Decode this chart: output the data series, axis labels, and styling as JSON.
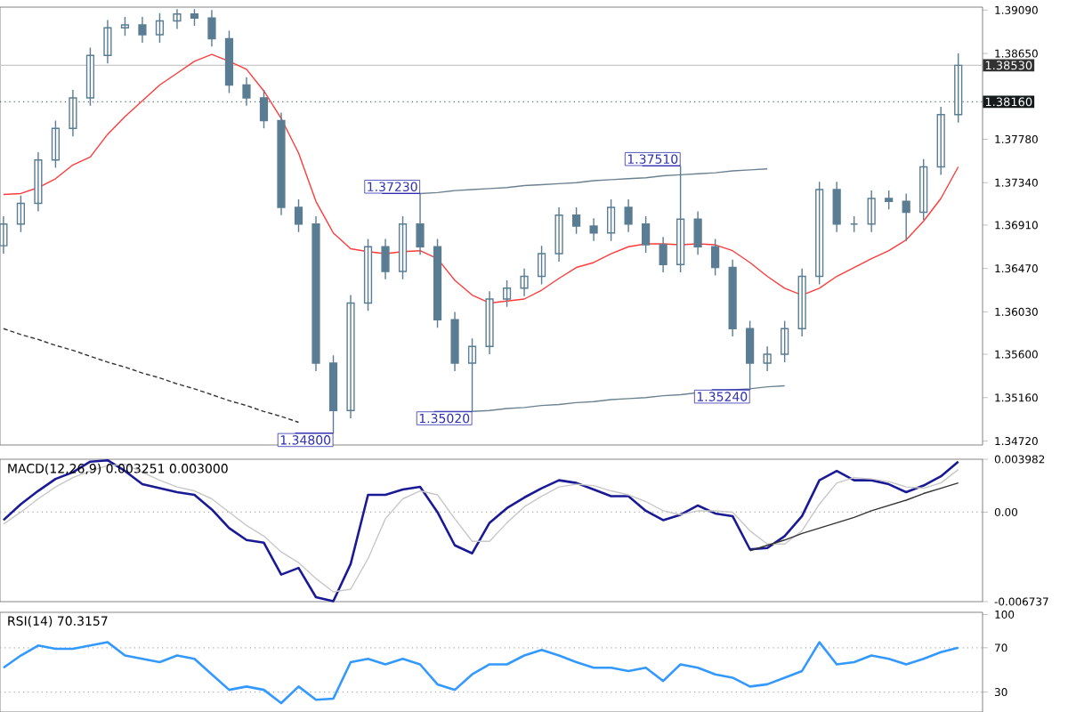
{
  "chart_data": [
    {
      "type": "candlestick",
      "color": "#5a7d93",
      "tick_labels": "y",
      "categories": [
        null,
        null,
        null,
        null,
        null,
        null,
        null,
        null,
        null,
        null,
        null,
        null,
        null,
        null,
        null,
        null,
        null,
        null,
        null,
        null,
        null,
        null,
        null,
        null,
        null,
        null,
        null,
        null,
        null,
        null,
        null,
        null,
        null,
        null,
        null,
        null,
        null,
        null,
        null,
        null,
        null,
        null,
        null,
        null,
        null,
        null,
        null,
        null,
        null,
        null,
        null,
        null,
        null,
        null,
        null,
        null
      ],
      "ohlc": [
        [
          1.367,
          1.37,
          1.3662,
          1.3692
        ],
        [
          1.3692,
          1.3721,
          1.3684,
          1.3713
        ],
        [
          1.3713,
          1.3765,
          1.3705,
          1.3757
        ],
        [
          1.3757,
          1.3797,
          1.3749,
          1.3789
        ],
        [
          1.3789,
          1.3828,
          1.3781,
          1.382
        ],
        [
          1.382,
          1.3871,
          1.3812,
          1.3863
        ],
        [
          1.3863,
          1.3899,
          1.3855,
          1.3891
        ],
        [
          1.3891,
          1.3902,
          1.3883,
          1.3894
        ],
        [
          1.3894,
          1.3902,
          1.3876,
          1.3884
        ],
        [
          1.3884,
          1.3906,
          1.3876,
          1.3898
        ],
        [
          1.3898,
          1.391,
          1.389,
          1.3905
        ],
        [
          1.3905,
          1.391,
          1.3893,
          1.3901
        ],
        [
          1.3901,
          1.3909,
          1.3872,
          1.388
        ],
        [
          1.388,
          1.3888,
          1.3825,
          1.3833
        ],
        [
          1.3833,
          1.3841,
          1.3812,
          1.382
        ],
        [
          1.382,
          1.3828,
          1.3789,
          1.3797
        ],
        [
          1.3797,
          1.3805,
          1.3701,
          1.3709
        ],
        [
          1.3709,
          1.3717,
          1.3684,
          1.3692
        ],
        [
          1.3692,
          1.37,
          1.3543,
          1.3551
        ],
        [
          1.3551,
          1.3559,
          1.348,
          1.3503
        ],
        [
          1.3503,
          1.362,
          1.3495,
          1.3612
        ],
        [
          1.3612,
          1.3677,
          1.3604,
          1.3669
        ],
        [
          1.3669,
          1.3677,
          1.3636,
          1.3644
        ],
        [
          1.3644,
          1.37,
          1.3636,
          1.3692
        ],
        [
          1.3692,
          1.3723,
          1.3661,
          1.3669
        ],
        [
          1.3669,
          1.3677,
          1.3587,
          1.3595
        ],
        [
          1.3595,
          1.3603,
          1.3543,
          1.3551
        ],
        [
          1.3551,
          1.3576,
          1.3502,
          1.3568
        ],
        [
          1.3568,
          1.3624,
          1.356,
          1.3616
        ],
        [
          1.3616,
          1.3635,
          1.3608,
          1.3627
        ],
        [
          1.3627,
          1.3647,
          1.3619,
          1.3639
        ],
        [
          1.3639,
          1.367,
          1.3631,
          1.3662
        ],
        [
          1.3662,
          1.3709,
          1.3654,
          1.3701
        ],
        [
          1.3701,
          1.3709,
          1.3682,
          1.369
        ],
        [
          1.369,
          1.3698,
          1.3675,
          1.3683
        ],
        [
          1.3683,
          1.3717,
          1.3675,
          1.3709
        ],
        [
          1.3709,
          1.3717,
          1.3684,
          1.3692
        ],
        [
          1.3692,
          1.37,
          1.3663,
          1.3671
        ],
        [
          1.3671,
          1.3679,
          1.3643,
          1.3651
        ],
        [
          1.3651,
          1.3751,
          1.3643,
          1.3697
        ],
        [
          1.3697,
          1.3705,
          1.3661,
          1.3669
        ],
        [
          1.3669,
          1.3677,
          1.364,
          1.3648
        ],
        [
          1.3648,
          1.3656,
          1.3578,
          1.3586
        ],
        [
          1.3586,
          1.3594,
          1.3524,
          1.3551
        ],
        [
          1.3551,
          1.3568,
          1.3543,
          1.356
        ],
        [
          1.356,
          1.3594,
          1.3552,
          1.3586
        ],
        [
          1.3586,
          1.3647,
          1.3578,
          1.3639
        ],
        [
          1.3639,
          1.3735,
          1.3631,
          1.3727
        ],
        [
          1.3727,
          1.3735,
          1.3684,
          1.3692
        ],
        [
          1.3692,
          1.37,
          1.3684,
          1.3692
        ],
        [
          1.3692,
          1.3726,
          1.3684,
          1.3718
        ],
        [
          1.3718,
          1.3726,
          1.3707,
          1.3715
        ],
        [
          1.3715,
          1.3723,
          1.3675,
          1.3704
        ],
        [
          1.3704,
          1.3758,
          1.3696,
          1.375
        ],
        [
          1.375,
          1.3811,
          1.3742,
          1.3803
        ],
        [
          1.3803,
          1.3865,
          1.3795,
          1.3853
        ]
      ],
      "series": [
        {
          "type": "line",
          "color": "#ff3b3b",
          "values": [
            1.3722,
            1.3723,
            1.3729,
            1.3738,
            1.3752,
            1.376,
            1.3783,
            1.3801,
            1.3817,
            1.3833,
            1.3845,
            1.3857,
            1.3864,
            1.3857,
            1.3849,
            1.3827,
            1.3799,
            1.3764,
            1.3715,
            1.3683,
            1.3667,
            1.3664,
            1.3662,
            1.3664,
            1.3665,
            1.3657,
            1.3635,
            1.362,
            1.3612,
            1.3614,
            1.3616,
            1.3625,
            1.3637,
            1.3648,
            1.3653,
            1.3662,
            1.3669,
            1.3672,
            1.3672,
            1.3671,
            1.3672,
            1.3671,
            1.3665,
            1.3653,
            1.3639,
            1.3627,
            1.362,
            1.3627,
            1.3639,
            1.3648,
            1.3657,
            1.3665,
            1.3676,
            1.3695,
            1.3718,
            1.375
          ]
        },
        {
          "type": "line",
          "color": "#6d8291",
          "values": [
            null,
            null,
            null,
            null,
            null,
            null,
            null,
            null,
            null,
            null,
            null,
            null,
            null,
            null,
            null,
            null,
            null,
            null,
            null,
            null,
            null,
            null,
            null,
            null,
            1.3723,
            1.3724,
            1.3726,
            1.3727,
            1.3728,
            1.3729,
            1.3731,
            1.3732,
            1.3733,
            1.3734,
            1.3736,
            1.3737,
            1.3738,
            1.3739,
            1.3741,
            1.3742,
            1.3743,
            1.3744,
            1.3746,
            1.3747,
            1.3748,
            null,
            null,
            null,
            null,
            null,
            null,
            null,
            null,
            null,
            null,
            null
          ]
        },
        {
          "type": "line",
          "color": "#6d8291",
          "values": [
            null,
            null,
            null,
            null,
            null,
            null,
            null,
            null,
            null,
            null,
            null,
            null,
            null,
            null,
            null,
            null,
            null,
            null,
            null,
            null,
            null,
            null,
            null,
            null,
            null,
            null,
            null,
            1.3502,
            1.3503,
            1.3505,
            1.3506,
            1.3508,
            1.3509,
            1.3511,
            1.3512,
            1.3514,
            1.3515,
            1.3516,
            1.3518,
            1.3519,
            1.3521,
            1.3522,
            1.3524,
            1.3525,
            1.3527,
            1.3528,
            null,
            null,
            null,
            null,
            null,
            null,
            null,
            null,
            null,
            null
          ]
        },
        {
          "type": "line",
          "color": "#333333",
          "line_style": "dashed",
          "values": [
            1.3586,
            1.358,
            1.3575,
            1.3569,
            1.3564,
            1.3558,
            1.3552,
            1.3547,
            1.3541,
            1.3536,
            1.353,
            1.3525,
            1.3519,
            1.3513,
            1.3508,
            1.3502,
            1.3497,
            1.3491,
            null,
            null,
            null,
            null,
            null,
            null,
            null,
            null,
            null,
            null,
            null,
            null,
            null,
            null,
            null,
            null,
            null,
            null,
            null,
            null,
            null,
            null,
            null,
            null,
            null,
            null,
            null,
            null,
            null,
            null,
            null,
            null,
            null,
            null,
            null,
            null,
            null,
            null
          ]
        }
      ],
      "ylim": [
        1.3468,
        1.3912
      ],
      "yticks": [
        {
          "value": 1.3472,
          "label": "1.34720"
        },
        {
          "value": 1.3516,
          "label": "1.35160"
        },
        {
          "value": 1.356,
          "label": "1.35600"
        },
        {
          "value": 1.3603,
          "label": "1.36030"
        },
        {
          "value": 1.3647,
          "label": "1.36470"
        },
        {
          "value": 1.3691,
          "label": "1.36910"
        },
        {
          "value": 1.3734,
          "label": "1.37340"
        },
        {
          "value": 1.3778,
          "label": "1.37780"
        },
        {
          "value": 1.3865,
          "label": "1.38650"
        },
        {
          "value": 1.3909,
          "label": "1.39090"
        }
      ],
      "ref_lines": [
        {
          "axis": "y",
          "value": 1.3853,
          "label": "1.38530",
          "color": "#c8c8c8",
          "line_style": "solid"
        },
        {
          "axis": "y",
          "value": 1.3816,
          "label": "1.38160",
          "color": "#556b6b",
          "line_style": "dotted"
        }
      ],
      "annotations": [
        "1.37230",
        "1.34800",
        "1.35020",
        "1.37510",
        "1.35240"
      ]
    },
    {
      "type": "line",
      "title": "MACD(12,26,9) 0.003251 0.003000",
      "tick_labels": "y",
      "categories": [
        null,
        null,
        null,
        null,
        null,
        null,
        null,
        null,
        null,
        null,
        null,
        null,
        null,
        null,
        null,
        null,
        null,
        null,
        null,
        null,
        null,
        null,
        null,
        null,
        null,
        null,
        null,
        null,
        null,
        null,
        null,
        null,
        null,
        null,
        null,
        null,
        null,
        null,
        null,
        null,
        null,
        null,
        null,
        null,
        null,
        null,
        null,
        null,
        null,
        null,
        null,
        null,
        null,
        null,
        null,
        null
      ],
      "series": [
        {
          "color": "#1a1a96",
          "values": [
            -0.0006,
            0.0006,
            0.0016,
            0.0025,
            0.003,
            0.0038,
            0.0039,
            0.0031,
            0.0021,
            0.0018,
            0.0015,
            0.0013,
            0.0002,
            -0.0012,
            -0.0021,
            -0.0023,
            -0.0047,
            -0.0042,
            -0.0064,
            -0.0067,
            -0.0039,
            0.0013,
            0.0013,
            0.0017,
            0.0019,
            0.0,
            -0.0025,
            -0.0031,
            -0.0008,
            0.0003,
            0.0011,
            0.0018,
            0.0024,
            0.0022,
            0.0017,
            0.0012,
            0.0012,
            0.0001,
            -0.0006,
            -0.0002,
            0.0005,
            -0.0001,
            -0.0003,
            -0.0028,
            -0.0027,
            -0.0018,
            -0.0003,
            0.0024,
            0.0031,
            0.0024,
            0.0024,
            0.0021,
            0.0015,
            0.002,
            0.0027,
            0.0038
          ]
        },
        {
          "color": "#c8c8c8",
          "values": [
            -0.0009,
            0.0,
            0.001,
            0.0019,
            0.0026,
            0.0031,
            0.0035,
            0.0036,
            0.003,
            0.0024,
            0.0019,
            0.0016,
            0.001,
            0.0,
            -0.001,
            -0.0018,
            -0.003,
            -0.0038,
            -0.005,
            -0.006,
            -0.0058,
            -0.0035,
            -0.0005,
            0.001,
            0.0016,
            0.0013,
            -0.0005,
            -0.0022,
            -0.0022,
            -0.0008,
            0.0004,
            0.0012,
            0.0019,
            0.0021,
            0.002,
            0.0016,
            0.0013,
            0.0008,
            0.0001,
            -0.0002,
            0.0001,
            0.0001,
            0.0,
            -0.0014,
            -0.0024,
            -0.0024,
            -0.0014,
            0.0006,
            0.0022,
            0.0026,
            0.0025,
            0.0023,
            0.0019,
            0.0018,
            0.0022,
            0.0032
          ]
        },
        {
          "color": "#333333",
          "values": [
            null,
            null,
            null,
            null,
            null,
            null,
            null,
            null,
            null,
            null,
            null,
            null,
            null,
            null,
            null,
            null,
            null,
            null,
            null,
            null,
            null,
            null,
            null,
            null,
            null,
            null,
            null,
            null,
            null,
            null,
            null,
            null,
            null,
            null,
            null,
            null,
            null,
            null,
            null,
            null,
            null,
            null,
            null,
            -0.0029,
            -0.0025,
            -0.0021,
            -0.0016,
            -0.0012,
            -0.0008,
            -0.0004,
            0.0001,
            0.0005,
            0.0009,
            0.0014,
            0.0018,
            0.0022
          ]
        }
      ],
      "ylim": [
        -0.006737,
        0.003982
      ],
      "yticks": [
        -0.006737,
        {
          "value": 0,
          "label": "0.00"
        },
        0.003982
      ],
      "ref_lines": [
        {
          "axis": "y",
          "value": 0,
          "color": "#aaaaaa",
          "line_style": "dotted"
        }
      ]
    },
    {
      "type": "line",
      "title": "RSI(14) 70.3157",
      "tick_labels": "y",
      "categories": [
        null,
        null,
        null,
        null,
        null,
        null,
        null,
        null,
        null,
        null,
        null,
        null,
        null,
        null,
        null,
        null,
        null,
        null,
        null,
        null,
        null,
        null,
        null,
        null,
        null,
        null,
        null,
        null,
        null,
        null,
        null,
        null,
        null,
        null,
        null,
        null,
        null,
        null,
        null,
        null,
        null,
        null,
        null,
        null,
        null,
        null,
        null,
        null,
        null,
        null,
        null,
        null,
        null,
        null,
        null,
        null
      ],
      "series": [
        {
          "color": "#3399ff",
          "values": [
            52,
            63,
            72,
            69,
            69,
            72,
            75,
            63,
            60,
            57,
            63,
            60,
            46,
            32,
            35,
            32,
            20,
            35,
            23,
            24,
            57,
            60,
            55,
            60,
            55,
            37,
            32,
            46,
            55,
            55,
            63,
            68,
            63,
            57,
            52,
            52,
            49,
            52,
            40,
            55,
            52,
            46,
            43,
            35,
            37,
            43,
            49,
            75,
            55,
            57,
            63,
            60,
            55,
            60,
            66,
            70
          ]
        }
      ],
      "ylim": [
        12,
        102
      ],
      "yticks": [
        30,
        70,
        100
      ],
      "ref_lines": [
        {
          "axis": "y",
          "value": 70,
          "color": "#aaaaaa",
          "line_style": "dotted"
        },
        {
          "axis": "y",
          "value": 30,
          "color": "#aaaaaa",
          "line_style": "dotted"
        }
      ]
    }
  ]
}
